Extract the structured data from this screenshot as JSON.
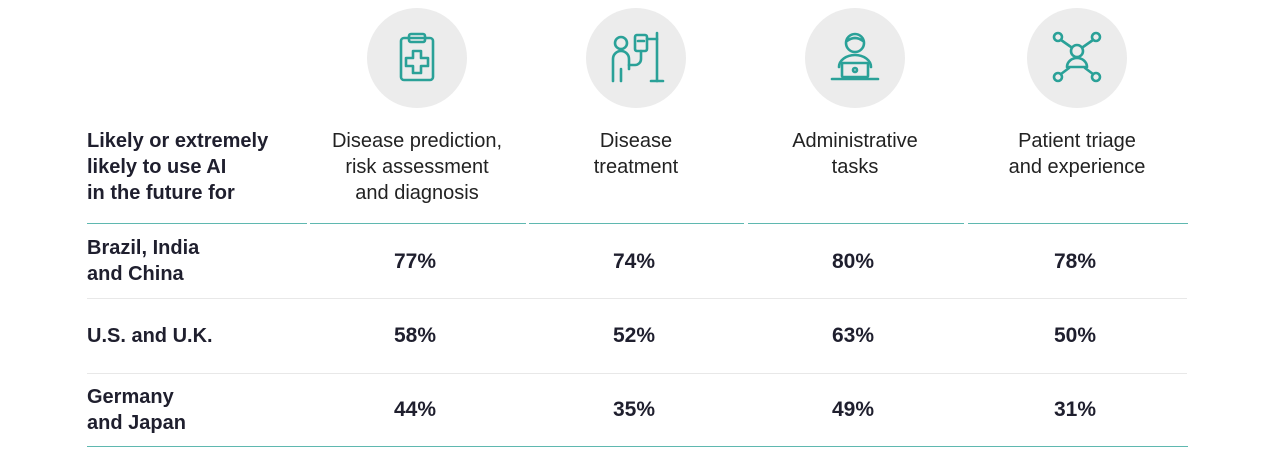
{
  "chart_data": {
    "type": "table",
    "title": "",
    "header_label": "Likely or extremely likely to use AI in the future for",
    "header_label_lines": [
      "Likely or extremely",
      "likely to use AI",
      "in the future for"
    ],
    "columns": [
      {
        "lines": [
          "Disease prediction,",
          "risk assessment",
          "and diagnosis"
        ],
        "icon": "clipboard-medical-icon"
      },
      {
        "lines": [
          "Disease",
          "treatment"
        ],
        "icon": "patient-iv-drip-icon"
      },
      {
        "lines": [
          "Administrative",
          "tasks"
        ],
        "icon": "person-at-laptop-icon"
      },
      {
        "lines": [
          "Patient triage",
          "and experience"
        ],
        "icon": "patient-network-icon"
      }
    ],
    "rows": [
      {
        "lines": [
          "Brazil, India",
          "and China"
        ],
        "values": [
          "77%",
          "74%",
          "80%",
          "78%"
        ]
      },
      {
        "lines": [
          "U.S. and U.K."
        ],
        "values": [
          "58%",
          "52%",
          "63%",
          "50%"
        ]
      },
      {
        "lines": [
          "Germany",
          "and Japan"
        ],
        "values": [
          "44%",
          "35%",
          "49%",
          "31%"
        ]
      }
    ],
    "numeric_values": [
      [
        77,
        74,
        80,
        78
      ],
      [
        58,
        52,
        63,
        50
      ],
      [
        44,
        35,
        49,
        31
      ]
    ],
    "unit": "%"
  },
  "colors": {
    "accent": "#2aa198",
    "line_teal": "#5fb8b0",
    "circle_bg": "#ececec",
    "text": "#1f1f2e"
  }
}
